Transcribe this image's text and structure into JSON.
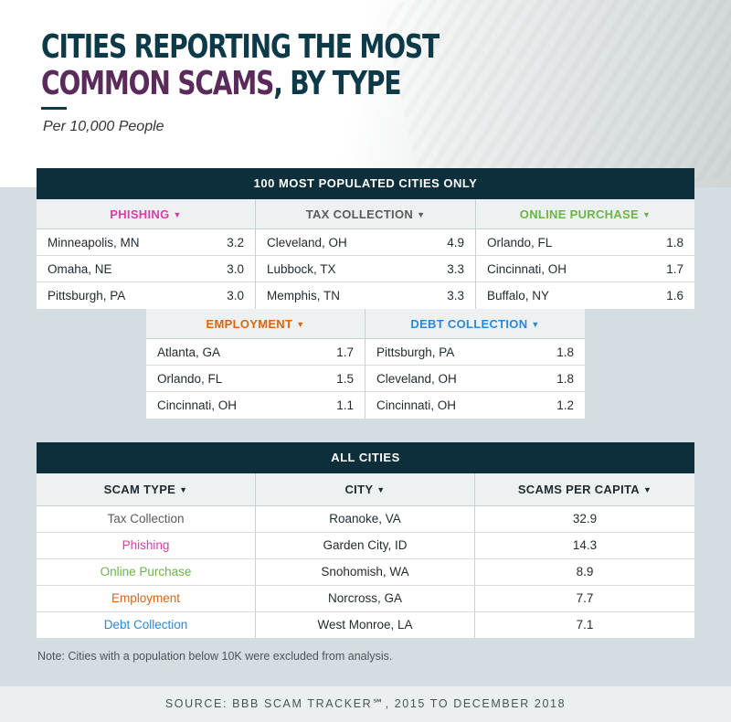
{
  "header": {
    "title_line1": "CITIES REPORTING THE MOST",
    "title_line2_accent": "COMMON SCAMS",
    "title_line2_rest": ", BY TYPE",
    "subtitle": "Per 10,000 People"
  },
  "colors": {
    "phishing": "#d540a8",
    "tax_collection": "#5b5b5b",
    "online_purchase": "#6ab544",
    "employment": "#d96612",
    "debt_collection": "#2a88d8",
    "navy": "#0d2f3b"
  },
  "chart_data": [
    {
      "type": "table",
      "title": "100 MOST POPULATED CITIES ONLY",
      "groups": [
        {
          "name": "PHISHING",
          "color": "#d540a8",
          "rows": [
            {
              "city": "Minneapolis, MN",
              "value": "3.2"
            },
            {
              "city": "Omaha, NE",
              "value": "3.0"
            },
            {
              "city": "Pittsburgh, PA",
              "value": "3.0"
            }
          ]
        },
        {
          "name": "TAX COLLECTION",
          "color": "#5b5b5b",
          "rows": [
            {
              "city": "Cleveland, OH",
              "value": "4.9"
            },
            {
              "city": "Lubbock, TX",
              "value": "3.3"
            },
            {
              "city": "Memphis, TN",
              "value": "3.3"
            }
          ]
        },
        {
          "name": "ONLINE PURCHASE",
          "color": "#6ab544",
          "rows": [
            {
              "city": "Orlando, FL",
              "value": "1.8"
            },
            {
              "city": "Cincinnati, OH",
              "value": "1.7"
            },
            {
              "city": "Buffalo, NY",
              "value": "1.6"
            }
          ]
        },
        {
          "name": "EMPLOYMENT",
          "color": "#d96612",
          "rows": [
            {
              "city": "Atlanta, GA",
              "value": "1.7"
            },
            {
              "city": "Orlando, FL",
              "value": "1.5"
            },
            {
              "city": "Cincinnati, OH",
              "value": "1.1"
            }
          ]
        },
        {
          "name": "DEBT COLLECTION",
          "color": "#2a88d8",
          "rows": [
            {
              "city": "Pittsburgh, PA",
              "value": "1.8"
            },
            {
              "city": "Cleveland, OH",
              "value": "1.8"
            },
            {
              "city": "Cincinnati, OH",
              "value": "1.2"
            }
          ]
        }
      ]
    },
    {
      "type": "table",
      "title": "ALL CITIES",
      "columns": [
        "SCAM TYPE",
        "CITY",
        "SCAMS PER CAPITA"
      ],
      "rows": [
        {
          "type": "Tax Collection",
          "color": "#5b5b5b",
          "city": "Roanoke, VA",
          "value": "32.9"
        },
        {
          "type": "Phishing",
          "color": "#d540a8",
          "city": "Garden City, ID",
          "value": "14.3"
        },
        {
          "type": "Online Purchase",
          "color": "#6ab544",
          "city": "Snohomish, WA",
          "value": "8.9"
        },
        {
          "type": "Employment",
          "color": "#d96612",
          "city": "Norcross, GA",
          "value": "7.7"
        },
        {
          "type": "Debt Collection",
          "color": "#2a88d8",
          "city": "West Monroe, LA",
          "value": "7.1"
        }
      ]
    }
  ],
  "note": "Note: Cities with a population below 10K were excluded from analysis.",
  "source": "SOURCE: BBB SCAM TRACKER℠, 2015 TO DECEMBER 2018"
}
